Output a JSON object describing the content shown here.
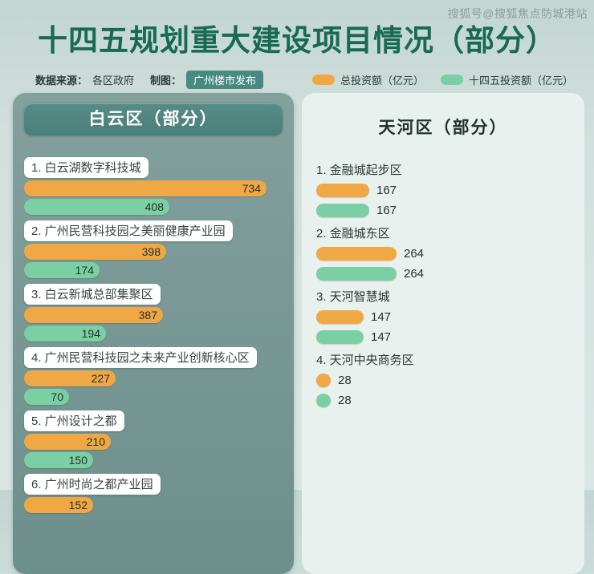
{
  "watermark": "搜狐号@搜狐焦点防城港站",
  "header": {
    "title": "十四五规划重大建设项目情况（部分）",
    "source_label": "数据来源：",
    "source_value": "各区政府",
    "credit_label": "制图：",
    "credit_value": "广州楼市发布",
    "legend": [
      {
        "label": "总投资额（亿元）",
        "color": "#f0a844"
      },
      {
        "label": "十四五投资额（亿元）",
        "color": "#7bd0a3"
      }
    ]
  },
  "chart_data": {
    "type": "bar",
    "unit": "亿元",
    "series_names": [
      "总投资额",
      "十四五投资额"
    ],
    "colors": {
      "total": "#f0a844",
      "plan": "#7bd0a3"
    },
    "legend_position": "top-right",
    "panels": [
      {
        "title": "白云区（部分）",
        "style": "dark",
        "max_value": 734,
        "projects": [
          {
            "name": "1. 白云湖数字科技城",
            "total": 734,
            "plan": 408
          },
          {
            "name": "2. 广州民营科技园之美丽健康产业园",
            "total": 398,
            "plan": 174
          },
          {
            "name": "3. 白云新城总部集聚区",
            "total": 387,
            "plan": 194
          },
          {
            "name": "4. 广州民营科技园之未来产业创新核心区",
            "total": 227,
            "plan": 70
          },
          {
            "name": "5. 广州设计之都",
            "total": 210,
            "plan": 150
          },
          {
            "name": "6. 广州时尚之都产业园",
            "total": 152,
            "plan": null
          }
        ]
      },
      {
        "title": "天河区（部分）",
        "style": "light",
        "max_value": 264,
        "projects": [
          {
            "name": "1. 金融城起步区",
            "total": 167,
            "plan": 167
          },
          {
            "name": "2. 金融城东区",
            "total": 264,
            "plan": 264
          },
          {
            "name": "3. 天河智慧城",
            "total": 147,
            "plan": 147
          },
          {
            "name": "4. 天河中央商务区",
            "total": 28,
            "plan": 28
          }
        ]
      }
    ]
  }
}
